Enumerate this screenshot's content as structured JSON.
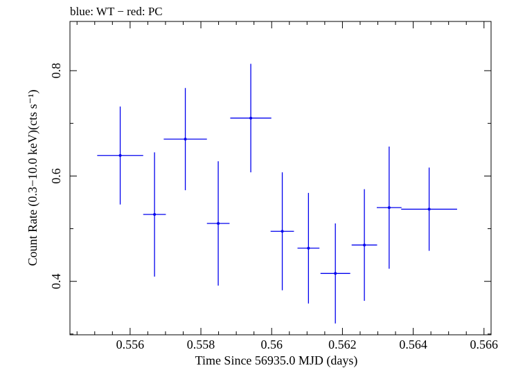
{
  "chart_data": {
    "type": "scatter",
    "title": "blue: WT − red: PC",
    "xlabel": "Time Since 56935.0 MJD (days)",
    "ylabel": "Count Rate (0.3−10.0 keV)(cts s⁻¹)",
    "xlim": [
      0.5543,
      0.5662
    ],
    "ylim": [
      0.2985,
      0.8935
    ],
    "x_ticks": [
      0.556,
      0.558,
      0.56,
      0.562,
      0.564,
      0.566
    ],
    "x_tick_labels": [
      "0.556",
      "0.558",
      "0.56",
      "0.562",
      "0.564",
      "0.566"
    ],
    "y_ticks": [
      0.4,
      0.6,
      0.8
    ],
    "y_tick_labels": [
      "0.4",
      "0.6",
      "0.8"
    ],
    "grid": false,
    "series": [
      {
        "color": "#0000ee",
        "points": [
          {
            "x": 0.55572,
            "xerr": 0.00065,
            "y": 0.639,
            "yerr": 0.093
          },
          {
            "x": 0.55669,
            "xerr": 0.00032,
            "y": 0.527,
            "yerr": 0.118
          },
          {
            "x": 0.55756,
            "xerr": 0.00061,
            "y": 0.67,
            "yerr": 0.097
          },
          {
            "x": 0.55849,
            "xerr": 0.00032,
            "y": 0.51,
            "yerr": 0.118
          },
          {
            "x": 0.55941,
            "xerr": 0.00058,
            "y": 0.71,
            "yerr": 0.103
          },
          {
            "x": 0.5603,
            "xerr": 0.00033,
            "y": 0.495,
            "yerr": 0.112
          },
          {
            "x": 0.56104,
            "xerr": 0.00031,
            "y": 0.463,
            "yerr": 0.105
          },
          {
            "x": 0.5618,
            "xerr": 0.00042,
            "y": 0.415,
            "yerr": 0.095
          },
          {
            "x": 0.56262,
            "xerr": 0.00036,
            "y": 0.469,
            "yerr": 0.106
          },
          {
            "x": 0.56332,
            "xerr": 0.00035,
            "y": 0.54,
            "yerr": 0.116
          },
          {
            "x": 0.56445,
            "xerr": 0.00079,
            "y": 0.537,
            "yerr": 0.079
          }
        ]
      }
    ]
  }
}
